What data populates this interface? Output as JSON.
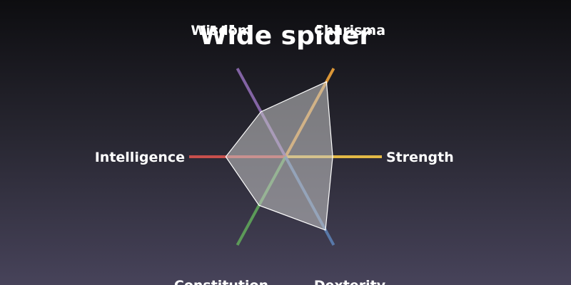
{
  "chart_data": {
    "type": "radar",
    "title": "Wide spider",
    "axes": [
      {
        "label": "Strength",
        "color": "#f7c948"
      },
      {
        "label": "Charisma",
        "color": "#f0a43a"
      },
      {
        "label": "Wisdom",
        "color": "#8e6bb3"
      },
      {
        "label": "Intelligence",
        "color": "#d9534f"
      },
      {
        "label": "Constitution",
        "color": "#5fa55a"
      },
      {
        "label": "Dexterity",
        "color": "#5b80b2"
      }
    ],
    "series": [
      {
        "values": [
          0.49,
          0.85,
          0.51,
          0.62,
          0.55,
          0.83
        ]
      }
    ],
    "range": [
      0,
      1
    ],
    "grid": false,
    "legend": "none",
    "fill_color": "#c8c8c8"
  }
}
